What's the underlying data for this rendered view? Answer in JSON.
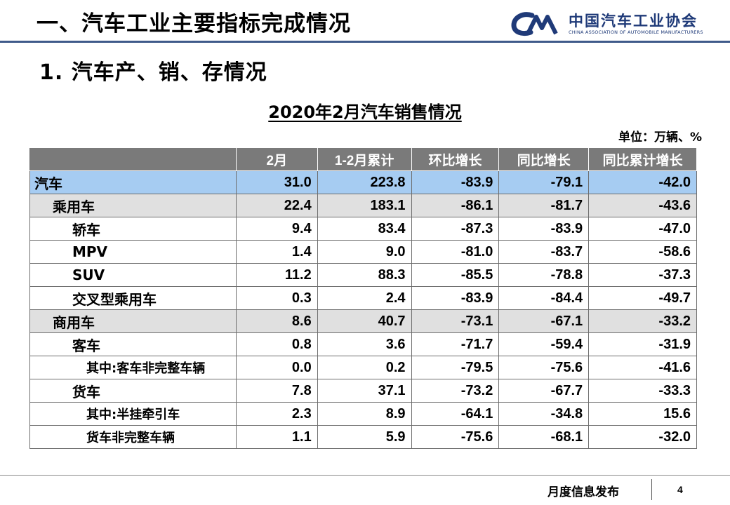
{
  "header": {
    "section_title": "一、汽车工业主要指标完成情况",
    "logo": {
      "cn_name": "中国汽车工业协会",
      "en_name": "CHINA ASSOCIATION OF AUTOMOBILE MANUFACTURERS",
      "brand_color": "#1f3a78"
    }
  },
  "subtitle": "1. 汽车产、销、存情况",
  "table_title": "2020年2月汽车销售情况",
  "unit": "单位：万辆、%",
  "table": {
    "columns": [
      "",
      "2月",
      "1-2月累计",
      "环比增长",
      "同比增长",
      "同比累计增长"
    ],
    "rows": [
      {
        "label": "汽车",
        "level": 0,
        "values": [
          "31.0",
          "223.8",
          "-83.9",
          "-79.1",
          "-42.0"
        ]
      },
      {
        "label": "乘用车",
        "level": 1,
        "values": [
          "22.4",
          "183.1",
          "-86.1",
          "-81.7",
          "-43.6"
        ]
      },
      {
        "label": "轿车",
        "level": 2,
        "values": [
          "9.4",
          "83.4",
          "-87.3",
          "-83.9",
          "-47.0"
        ]
      },
      {
        "label": "MPV",
        "level": 2,
        "values": [
          "1.4",
          "9.0",
          "-81.0",
          "-83.7",
          "-58.6"
        ]
      },
      {
        "label": "SUV",
        "level": 2,
        "values": [
          "11.2",
          "88.3",
          "-85.5",
          "-78.8",
          "-37.3"
        ]
      },
      {
        "label": "交叉型乘用车",
        "level": 2,
        "values": [
          "0.3",
          "2.4",
          "-83.9",
          "-84.4",
          "-49.7"
        ]
      },
      {
        "label": "商用车",
        "level": 1,
        "values": [
          "8.6",
          "40.7",
          "-73.1",
          "-67.1",
          "-33.2"
        ]
      },
      {
        "label": "客车",
        "level": 2,
        "values": [
          "0.8",
          "3.6",
          "-71.7",
          "-59.4",
          "-31.9"
        ]
      },
      {
        "label": "其中:客车非完整车辆",
        "level": 3,
        "values": [
          "0.0",
          "0.2",
          "-79.5",
          "-75.6",
          "-41.6"
        ]
      },
      {
        "label": "货车",
        "level": 2,
        "values": [
          "7.8",
          "37.1",
          "-73.2",
          "-67.7",
          "-33.3"
        ]
      },
      {
        "label": "其中:半挂牵引车",
        "level": 3,
        "values": [
          "2.3",
          "8.9",
          "-64.1",
          "-34.8",
          "15.6"
        ]
      },
      {
        "label": "货车非完整车辆",
        "level": 3,
        "values": [
          "1.1",
          "5.9",
          "-75.6",
          "-68.1",
          "-32.0"
        ]
      }
    ]
  },
  "footer": {
    "label": "月度信息发布",
    "page_number": "4"
  }
}
